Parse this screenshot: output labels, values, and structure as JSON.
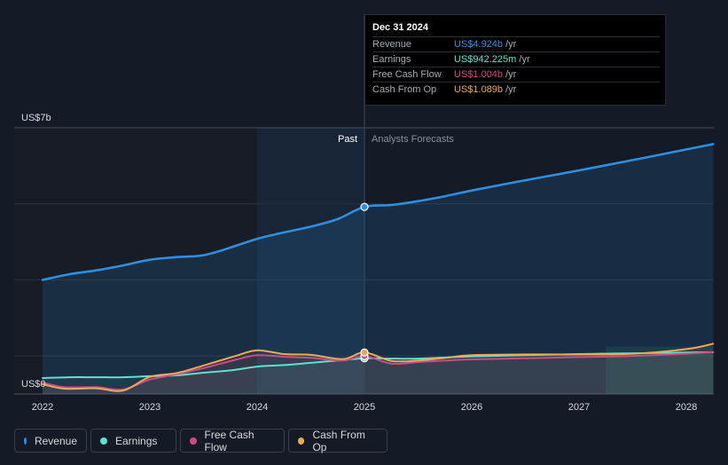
{
  "chart_data": {
    "type": "line",
    "y_axis_labels": {
      "top": "US$7b",
      "bottom": "US$0"
    },
    "ylim": [
      0,
      7
    ],
    "xlim": [
      2022.0,
      2028.3
    ],
    "x_ticks": [
      "2022",
      "2023",
      "2024",
      "2025",
      "2026",
      "2027",
      "2028"
    ],
    "x_tick_values": [
      2022,
      2023,
      2024,
      2025,
      2026,
      2027,
      2028
    ],
    "past_label": "Past",
    "forecast_label": "Analysts Forecasts",
    "past_end": 2025.0,
    "series": [
      {
        "name": "Revenue",
        "color": "#2e8fe0",
        "x": [
          2022.0,
          2022.25,
          2022.5,
          2022.75,
          2023.0,
          2023.25,
          2023.5,
          2023.75,
          2024.0,
          2024.25,
          2024.5,
          2024.75,
          2025.0,
          2025.25,
          2025.5,
          2025.75,
          2026.0,
          2026.5,
          2027.0,
          2027.5,
          2028.0,
          2028.25
        ],
        "values": [
          3.0,
          3.15,
          3.25,
          3.38,
          3.53,
          3.6,
          3.65,
          3.85,
          4.08,
          4.25,
          4.4,
          4.6,
          4.92,
          4.97,
          5.07,
          5.2,
          5.35,
          5.62,
          5.88,
          6.15,
          6.43,
          6.57
        ]
      },
      {
        "name": "Earnings",
        "color": "#5de2cf",
        "x": [
          2022.0,
          2022.25,
          2022.5,
          2022.75,
          2023.0,
          2023.25,
          2023.5,
          2023.75,
          2024.0,
          2024.25,
          2024.5,
          2024.75,
          2025.0,
          2025.25,
          2025.5,
          2025.75,
          2026.0,
          2026.5,
          2027.0,
          2027.5,
          2028.0,
          2028.25
        ],
        "values": [
          0.42,
          0.44,
          0.44,
          0.44,
          0.47,
          0.49,
          0.56,
          0.62,
          0.72,
          0.76,
          0.82,
          0.88,
          0.94,
          0.93,
          0.93,
          0.96,
          0.99,
          1.02,
          1.05,
          1.07,
          1.09,
          1.1
        ]
      },
      {
        "name": "Free Cash Flow",
        "color": "#cc4b82",
        "x": [
          2022.0,
          2022.2,
          2022.5,
          2022.75,
          2023.0,
          2023.25,
          2023.5,
          2023.8,
          2024.0,
          2024.25,
          2024.5,
          2024.8,
          2025.0,
          2025.25,
          2025.5,
          2025.75,
          2026.0,
          2026.5,
          2027.0,
          2027.5,
          2028.0,
          2028.25
        ],
        "values": [
          0.3,
          0.18,
          0.18,
          0.12,
          0.38,
          0.52,
          0.68,
          0.9,
          1.02,
          0.98,
          0.95,
          0.88,
          1.0,
          0.8,
          0.84,
          0.88,
          0.91,
          0.94,
          0.97,
          1.0,
          1.06,
          1.1
        ]
      },
      {
        "name": "Cash From Op",
        "color": "#e9a85a",
        "x": [
          2022.0,
          2022.2,
          2022.5,
          2022.75,
          2023.0,
          2023.25,
          2023.5,
          2023.8,
          2024.0,
          2024.25,
          2024.5,
          2024.8,
          2025.0,
          2025.25,
          2025.5,
          2025.75,
          2026.0,
          2026.5,
          2027.0,
          2027.5,
          2028.0,
          2028.25
        ],
        "values": [
          0.26,
          0.14,
          0.15,
          0.09,
          0.45,
          0.55,
          0.75,
          1.0,
          1.15,
          1.05,
          1.03,
          0.92,
          1.09,
          0.87,
          0.88,
          0.95,
          1.02,
          1.04,
          1.04,
          1.06,
          1.18,
          1.32
        ]
      }
    ]
  },
  "tooltip": {
    "date": "Dec 31 2024",
    "unit": "/yr",
    "rows": [
      {
        "label": "Revenue",
        "value": "US$4.924b",
        "color": "#2e8fe0"
      },
      {
        "label": "Earnings",
        "value": "US$942.225m",
        "color": "#5de2cf"
      },
      {
        "label": "Free Cash Flow",
        "value": "US$1.004b",
        "color": "#cc4b82"
      },
      {
        "label": "Cash From Op",
        "value": "US$1.089b",
        "color": "#e9a85a"
      }
    ]
  },
  "legend": [
    {
      "label": "Revenue",
      "color": "#2e8fe0"
    },
    {
      "label": "Earnings",
      "color": "#5de2cf"
    },
    {
      "label": "Free Cash Flow",
      "color": "#cc4b82"
    },
    {
      "label": "Cash From Op",
      "color": "#e9a85a"
    }
  ]
}
